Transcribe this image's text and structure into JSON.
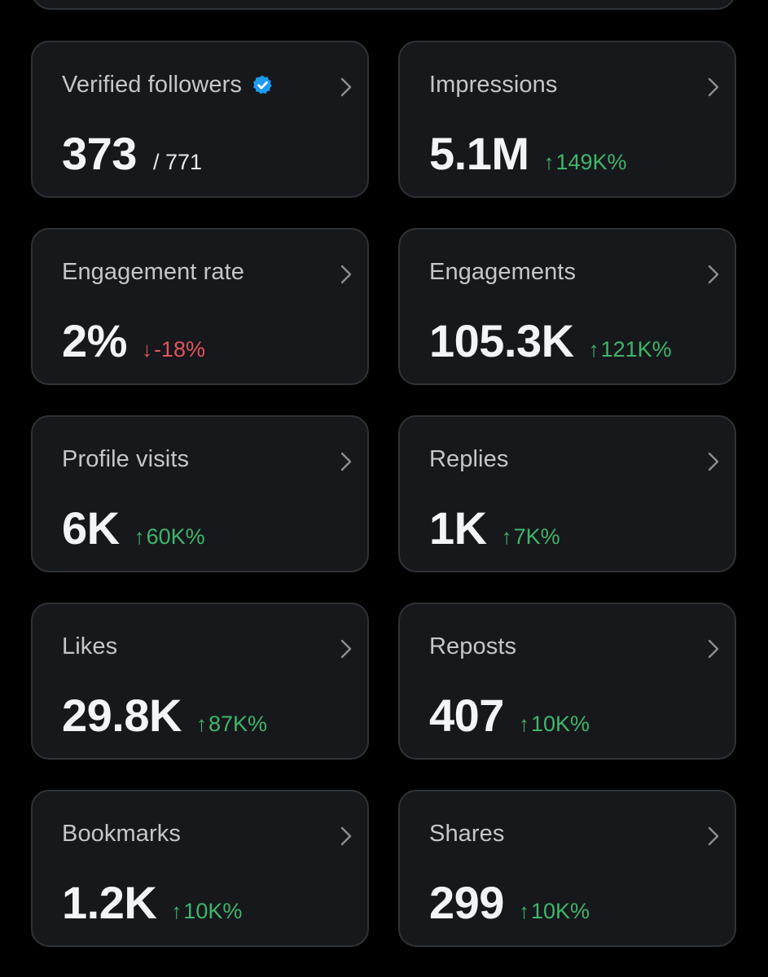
{
  "colors": {
    "background": "#000000",
    "card": "#16181c",
    "border": "#2f3336",
    "up": "#3fb56a",
    "down": "#e0545c",
    "verified": "#1d9bf0"
  },
  "metrics": [
    {
      "label": "Verified followers",
      "value": "373",
      "sub": "/ 771",
      "verified": true
    },
    {
      "label": "Impressions",
      "value": "5.1M",
      "arrow": "↑",
      "delta": "149K%",
      "direction": "up"
    },
    {
      "label": "Engagement rate",
      "value": "2%",
      "arrow": "↓",
      "delta": "-18%",
      "direction": "down"
    },
    {
      "label": "Engagements",
      "value": "105.3K",
      "arrow": "↑",
      "delta": "121K%",
      "direction": "up"
    },
    {
      "label": "Profile visits",
      "value": "6K",
      "arrow": "↑",
      "delta": "60K%",
      "direction": "up"
    },
    {
      "label": "Replies",
      "value": "1K",
      "arrow": "↑",
      "delta": "7K%",
      "direction": "up"
    },
    {
      "label": "Likes",
      "value": "29.8K",
      "arrow": "↑",
      "delta": "87K%",
      "direction": "up"
    },
    {
      "label": "Reposts",
      "value": "407",
      "arrow": "↑",
      "delta": "10K%",
      "direction": "up"
    },
    {
      "label": "Bookmarks",
      "value": "1.2K",
      "arrow": "↑",
      "delta": "10K%",
      "direction": "up"
    },
    {
      "label": "Shares",
      "value": "299",
      "arrow": "↑",
      "delta": "10K%",
      "direction": "up"
    }
  ]
}
